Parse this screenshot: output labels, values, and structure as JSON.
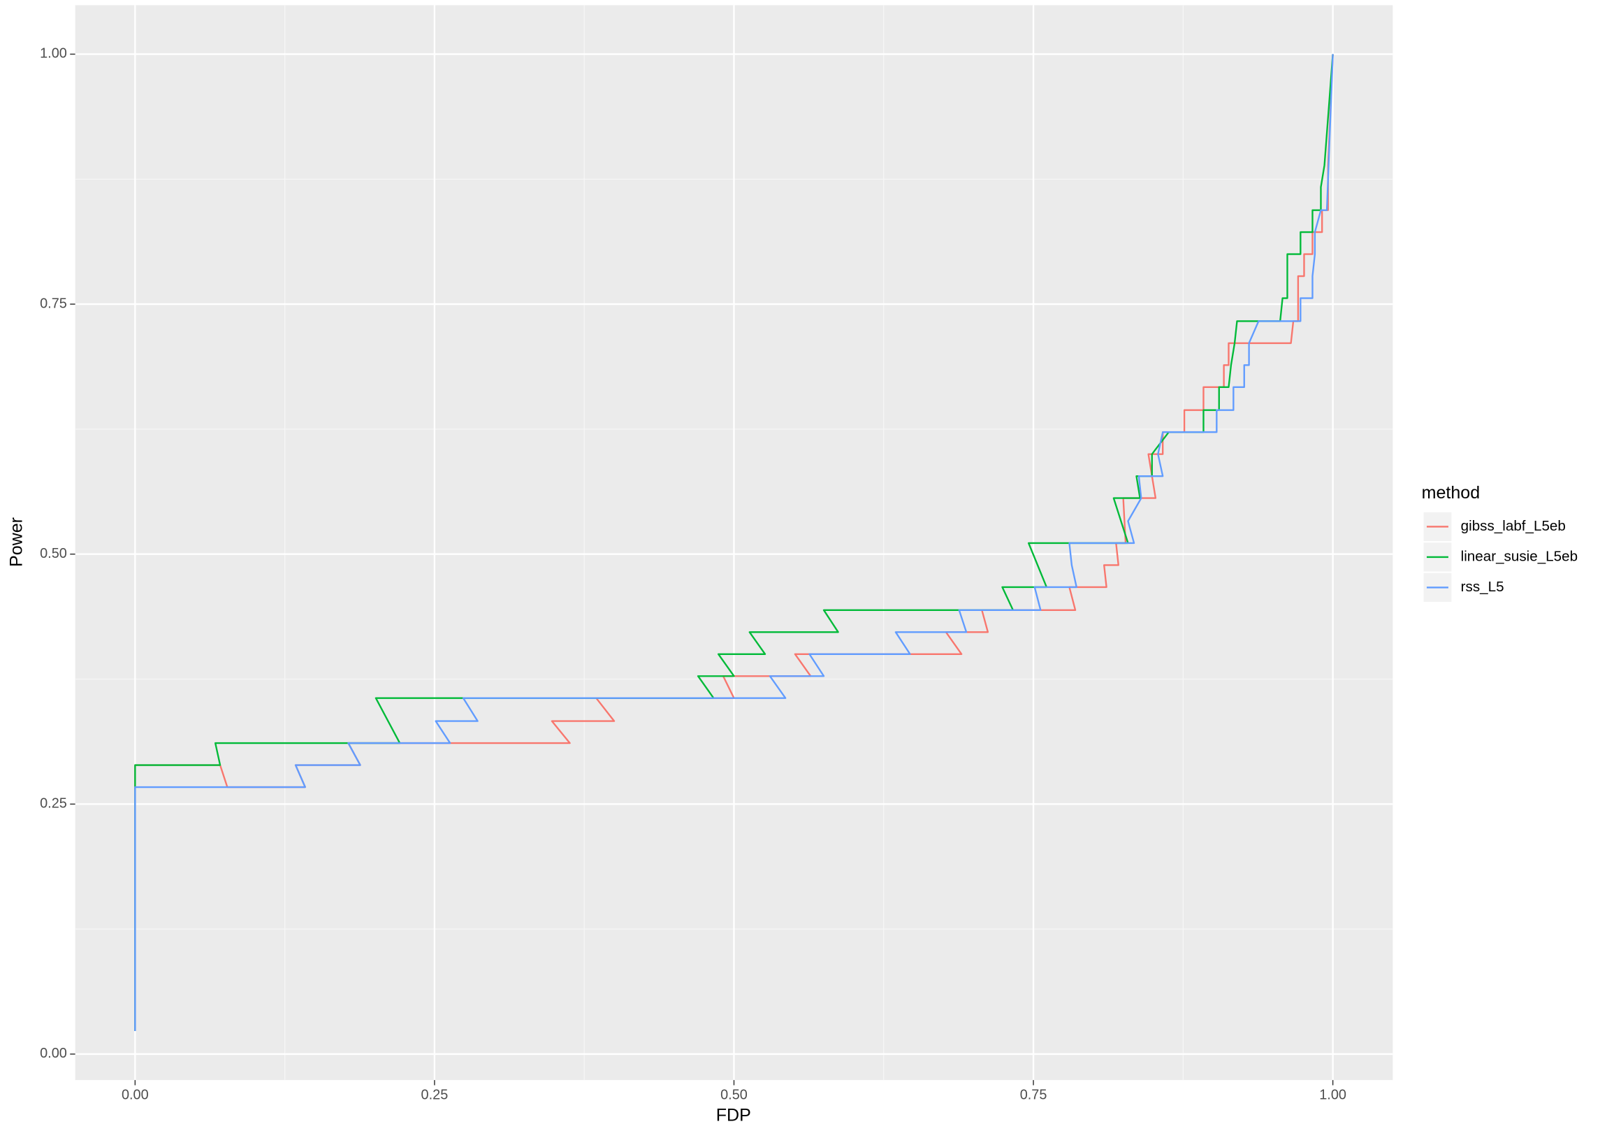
{
  "chart_data": {
    "type": "line",
    "x_label": "FDP",
    "y_label": "Power",
    "legend_title": "method",
    "legend": "right",
    "grid": true,
    "xlim": [
      -0.05,
      1.05
    ],
    "ylim": [
      -0.026,
      1.049
    ],
    "xticks": [
      {
        "value": 0,
        "label": "0.00"
      },
      {
        "value": 0.25,
        "label": "0.25"
      },
      {
        "value": 0.5,
        "label": "0.50"
      },
      {
        "value": 0.75,
        "label": "0.75"
      },
      {
        "value": 1,
        "label": "1.00"
      }
    ],
    "yticks": [
      {
        "value": 0,
        "label": "0.00"
      },
      {
        "value": 0.25,
        "label": "0.25"
      },
      {
        "value": 0.5,
        "label": "0.50"
      },
      {
        "value": 0.75,
        "label": "0.75"
      },
      {
        "value": 1,
        "label": "1.00"
      }
    ],
    "xminor": [
      0.125,
      0.375,
      0.625,
      0.875
    ],
    "yminor": [
      0.125,
      0.375,
      0.625,
      0.875
    ],
    "series": [
      {
        "name": "gibss_labf_L5eb",
        "color": "#f8766d",
        "x": [
          0,
          0,
          0.071,
          0.077,
          0.142,
          0.134,
          0.188,
          0.178,
          0.363,
          0.348,
          0.4,
          0.385,
          0.5,
          0.491,
          0.564,
          0.551,
          0.69,
          0.677,
          0.712,
          0.707,
          0.785,
          0.78,
          0.811,
          0.809,
          0.821,
          0.819,
          0.827,
          0.825,
          0.852,
          0.846,
          0.858,
          0.858,
          0.876,
          0.876,
          0.892,
          0.892,
          0.909,
          0.909,
          0.913,
          0.913,
          0.965,
          0.967,
          0.971,
          0.971,
          0.976,
          0.976,
          0.983,
          0.983,
          0.991,
          0.991,
          0.996,
          0.996,
          1
        ],
        "values": [
          0.023,
          0.289,
          0.289,
          0.267,
          0.267,
          0.289,
          0.289,
          0.311,
          0.311,
          0.333,
          0.333,
          0.356,
          0.356,
          0.378,
          0.378,
          0.4,
          0.4,
          0.422,
          0.422,
          0.444,
          0.444,
          0.467,
          0.467,
          0.489,
          0.489,
          0.511,
          0.511,
          0.556,
          0.556,
          0.6,
          0.6,
          0.622,
          0.622,
          0.644,
          0.644,
          0.667,
          0.667,
          0.689,
          0.689,
          0.711,
          0.711,
          0.733,
          0.733,
          0.778,
          0.778,
          0.8,
          0.8,
          0.822,
          0.822,
          0.844,
          0.844,
          0.889,
          1
        ]
      },
      {
        "name": "linear_susie_L5eb",
        "color": "#00ba38",
        "x": [
          0,
          0,
          0.071,
          0.067,
          0.221,
          0.201,
          0.483,
          0.47,
          0.5,
          0.487,
          0.526,
          0.513,
          0.587,
          0.575,
          0.733,
          0.724,
          0.761,
          0.746,
          0.829,
          0.817,
          0.839,
          0.836,
          0.849,
          0.849,
          0.863,
          0.892,
          0.892,
          0.905,
          0.905,
          0.913,
          0.915,
          0.918,
          0.92,
          0.956,
          0.958,
          0.962,
          0.962,
          0.973,
          0.973,
          0.983,
          0.983,
          0.99,
          0.99,
          0.993,
          1
        ],
        "values": [
          0.023,
          0.289,
          0.289,
          0.311,
          0.311,
          0.356,
          0.356,
          0.378,
          0.378,
          0.4,
          0.4,
          0.422,
          0.422,
          0.444,
          0.444,
          0.467,
          0.467,
          0.511,
          0.511,
          0.556,
          0.556,
          0.578,
          0.578,
          0.6,
          0.622,
          0.622,
          0.644,
          0.644,
          0.667,
          0.667,
          0.689,
          0.711,
          0.733,
          0.733,
          0.756,
          0.756,
          0.8,
          0.8,
          0.822,
          0.822,
          0.844,
          0.844,
          0.867,
          0.889,
          1
        ]
      },
      {
        "name": "rss_L5",
        "color": "#619cff",
        "x": [
          0,
          0,
          0.142,
          0.134,
          0.188,
          0.178,
          0.263,
          0.251,
          0.286,
          0.274,
          0.543,
          0.53,
          0.575,
          0.563,
          0.647,
          0.635,
          0.694,
          0.688,
          0.756,
          0.751,
          0.786,
          0.782,
          0.78,
          0.834,
          0.829,
          0.84,
          0.838,
          0.858,
          0.854,
          0.858,
          0.903,
          0.903,
          0.917,
          0.917,
          0.926,
          0.926,
          0.93,
          0.93,
          0.938,
          0.973,
          0.973,
          0.983,
          0.983,
          0.985,
          0.985,
          0.99,
          0.995,
          1
        ],
        "values": [
          0.023,
          0.267,
          0.267,
          0.289,
          0.289,
          0.311,
          0.311,
          0.333,
          0.333,
          0.356,
          0.356,
          0.378,
          0.378,
          0.4,
          0.4,
          0.422,
          0.422,
          0.444,
          0.444,
          0.467,
          0.467,
          0.489,
          0.511,
          0.511,
          0.533,
          0.556,
          0.578,
          0.578,
          0.6,
          0.622,
          0.622,
          0.644,
          0.644,
          0.667,
          0.667,
          0.689,
          0.689,
          0.711,
          0.733,
          0.733,
          0.756,
          0.756,
          0.778,
          0.8,
          0.822,
          0.844,
          0.844,
          1
        ]
      }
    ]
  }
}
